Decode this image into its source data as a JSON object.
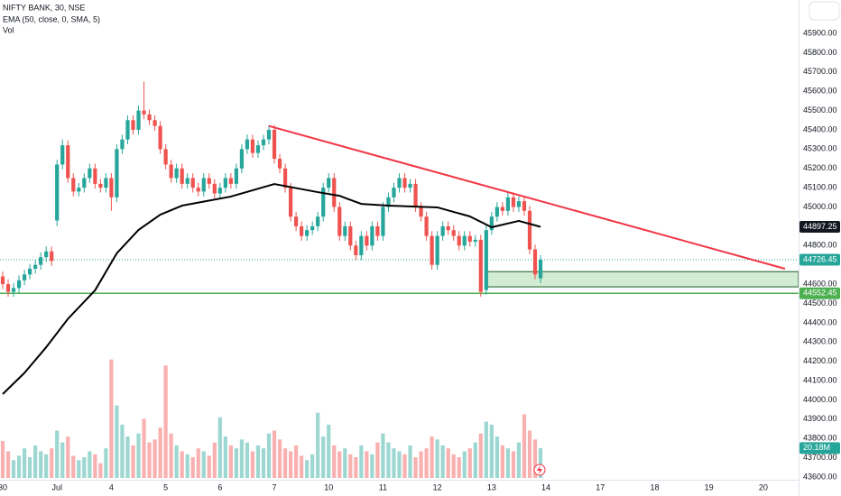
{
  "chart_data": {
    "type": "candlestick",
    "title": "NIFTY BANK, 30, NSE",
    "indicators": [
      "EMA (50, close, 0, SMA, 5)",
      "Vol"
    ],
    "colors": {
      "up": "#26a69a",
      "down": "#ef5350",
      "ema": "#000000",
      "trend": "#f23645",
      "support": "#4caf50"
    },
    "grid": false,
    "xlim": [
      -0.5,
      146.5
    ],
    "ylim": [
      43586,
      46073
    ],
    "xticks": [
      {
        "value": 0,
        "label": "30"
      },
      {
        "value": 10,
        "label": "Jul"
      },
      {
        "value": 20,
        "label": "4"
      },
      {
        "value": 30,
        "label": "5"
      },
      {
        "value": 40,
        "label": "6"
      },
      {
        "value": 50,
        "label": "7"
      },
      {
        "value": 60,
        "label": "10"
      },
      {
        "value": 70,
        "label": "11"
      },
      {
        "value": 80,
        "label": "12"
      },
      {
        "value": 90,
        "label": "13"
      },
      {
        "value": 100,
        "label": "14"
      },
      {
        "value": 110,
        "label": "17"
      },
      {
        "value": 120,
        "label": "18"
      },
      {
        "value": 130,
        "label": "19"
      },
      {
        "value": 140,
        "label": "20"
      }
    ],
    "yticks": [
      {
        "value": 43600,
        "label": "43600.00"
      },
      {
        "value": 43700,
        "label": "43700.00"
      },
      {
        "value": 43800,
        "label": "43800.00"
      },
      {
        "value": 43900,
        "label": "43900.00"
      },
      {
        "value": 44000,
        "label": "44000.00"
      },
      {
        "value": 44100,
        "label": "44100.00"
      },
      {
        "value": 44200,
        "label": "44200.00"
      },
      {
        "value": 44300,
        "label": "44300.00"
      },
      {
        "value": 44400,
        "label": "44400.00"
      },
      {
        "value": 44500,
        "label": "44500.00"
      },
      {
        "value": 44600,
        "label": "44600.00"
      },
      {
        "value": 44800,
        "label": "44800.00"
      },
      {
        "value": 45000,
        "label": "45000.00"
      },
      {
        "value": 45100,
        "label": "45100.00"
      },
      {
        "value": 45200,
        "label": "45200.00"
      },
      {
        "value": 45300,
        "label": "45300.00"
      },
      {
        "value": 45400,
        "label": "45400.00"
      },
      {
        "value": 45500,
        "label": "45500.00"
      },
      {
        "value": 45600,
        "label": "45600.00"
      },
      {
        "value": 45700,
        "label": "45700.00"
      },
      {
        "value": 45800,
        "label": "45800.00"
      },
      {
        "value": 45900,
        "label": "45900.00"
      }
    ],
    "open": [
      44640,
      44600,
      44560,
      44580,
      44620,
      44650,
      44680,
      44700,
      44740,
      44770,
      44930,
      45220,
      45320,
      45150,
      45080,
      45100,
      45150,
      45200,
      45120,
      45100,
      45150,
      45050,
      45300,
      45350,
      45450,
      45400,
      45500,
      45480,
      45450,
      45420,
      45300,
      45220,
      45150,
      45200,
      45120,
      45150,
      45100,
      45080,
      45150,
      45120,
      45070,
      45100,
      45150,
      45120,
      45200,
      45300,
      45350,
      45280,
      45320,
      45350,
      45400,
      45250,
      45200,
      45100,
      44950,
      44900,
      44850,
      44880,
      44900,
      44950,
      45100,
      45150,
      45000,
      44850,
      44900,
      44800,
      44750,
      44850,
      44800,
      44900,
      44850,
      45000,
      45050,
      45100,
      45150,
      45100,
      45120,
      45000,
      44950,
      44850,
      44700,
      44850,
      44900,
      44880,
      44850,
      44800,
      44850,
      44820,
      44830,
      44570,
      44880,
      44950,
      45000,
      44980,
      45050,
      45000,
      45030,
      44980,
      44780,
      44630
    ],
    "high": [
      44665,
      44625,
      44605,
      44645,
      44675,
      44705,
      44725,
      44765,
      44795,
      44795,
      45245,
      45350,
      45345,
      45175,
      45125,
      45175,
      45225,
      45225,
      45145,
      45175,
      45175,
      45325,
      45375,
      45475,
      45475,
      45525,
      45650,
      45505,
      45475,
      45445,
      45325,
      45245,
      45225,
      45225,
      45175,
      45175,
      45125,
      45175,
      45175,
      45145,
      45125,
      45175,
      45175,
      45225,
      45325,
      45375,
      45375,
      45345,
      45375,
      45425,
      45425,
      45275,
      45225,
      45125,
      44975,
      44925,
      44905,
      44925,
      44975,
      45125,
      45175,
      45175,
      45025,
      44925,
      44925,
      44825,
      44875,
      44875,
      44925,
      44925,
      45025,
      45075,
      45125,
      45175,
      45175,
      45145,
      45145,
      45025,
      44975,
      44875,
      44875,
      44925,
      44925,
      44905,
      44875,
      44875,
      44875,
      44855,
      44855,
      44905,
      44975,
      45025,
      45025,
      45075,
      45075,
      45055,
      45055,
      45005,
      44805,
      44750
    ],
    "low": [
      44575,
      44535,
      44535,
      44555,
      44595,
      44625,
      44655,
      44675,
      44715,
      44695,
      44900,
      45195,
      45125,
      45055,
      45055,
      45075,
      45125,
      45095,
      45075,
      45075,
      44980,
      45025,
      45275,
      45325,
      45375,
      45375,
      45455,
      45425,
      45395,
      45275,
      45195,
      45125,
      45125,
      45095,
      45095,
      45075,
      45055,
      45055,
      45095,
      45045,
      45045,
      45075,
      45095,
      45095,
      45175,
      45275,
      45255,
      45255,
      45295,
      45325,
      45225,
      45175,
      45075,
      44925,
      44875,
      44825,
      44825,
      44855,
      44875,
      44925,
      45075,
      44975,
      44825,
      44825,
      44775,
      44725,
      44725,
      44775,
      44775,
      44825,
      44825,
      44975,
      45025,
      45075,
      45075,
      45075,
      44975,
      44925,
      44825,
      44675,
      44675,
      44825,
      44855,
      44825,
      44775,
      44775,
      44795,
      44795,
      44535,
      44545,
      44855,
      44925,
      44955,
      44955,
      44975,
      44975,
      44955,
      44755,
      44625,
      44605
    ],
    "close": [
      44600,
      44560,
      44580,
      44620,
      44650,
      44680,
      44700,
      44740,
      44770,
      44720,
      45220,
      45320,
      45150,
      45080,
      45100,
      45150,
      45200,
      45120,
      45100,
      45150,
      45050,
      45300,
      45350,
      45450,
      45400,
      45500,
      45480,
      45450,
      45420,
      45300,
      45220,
      45150,
      45200,
      45120,
      45150,
      45100,
      45080,
      45150,
      45120,
      45070,
      45100,
      45150,
      45120,
      45200,
      45300,
      45350,
      45280,
      45320,
      45350,
      45400,
      45250,
      45200,
      45100,
      44950,
      44900,
      44850,
      44880,
      44900,
      44950,
      45100,
      45150,
      45000,
      44850,
      44900,
      44800,
      44750,
      44850,
      44800,
      44900,
      44850,
      45000,
      45050,
      45100,
      45150,
      45100,
      45120,
      45000,
      44950,
      44850,
      44700,
      44850,
      44900,
      44880,
      44850,
      44800,
      44850,
      44820,
      44830,
      44560,
      44880,
      44950,
      45000,
      44980,
      45050,
      45000,
      45030,
      44980,
      44780,
      44650,
      44726.45
    ],
    "volume": {
      "vlim": [
        0,
        81
      ],
      "last_label": "20.18M",
      "values": [
        25,
        18,
        12,
        15,
        20,
        14,
        22,
        18,
        16,
        20,
        32,
        24,
        28,
        15,
        12,
        14,
        18,
        16,
        10,
        20,
        80,
        49,
        36,
        28,
        22,
        30,
        40,
        24,
        26,
        34,
        76,
        30,
        22,
        18,
        16,
        14,
        20,
        18,
        15,
        24,
        41,
        28,
        22,
        20,
        26,
        24,
        18,
        22,
        20,
        30,
        32,
        26,
        20,
        18,
        22,
        15,
        12,
        16,
        44,
        28,
        36,
        22,
        18,
        20,
        16,
        14,
        22,
        18,
        16,
        24,
        30,
        24,
        20,
        18,
        16,
        22,
        14,
        18,
        20,
        28,
        26,
        22,
        20,
        16,
        14,
        18,
        20,
        24,
        30,
        38,
        36,
        28,
        22,
        20,
        18,
        24,
        43,
        32,
        26,
        20.18
      ]
    },
    "ema": {
      "x": [
        0,
        4,
        8,
        12,
        17,
        21,
        25,
        29,
        33,
        42,
        50,
        58,
        62,
        66,
        71,
        80,
        86,
        90,
        95,
        99
      ],
      "values": [
        44030,
        44140,
        44273,
        44420,
        44568,
        44760,
        44881,
        44960,
        45007,
        45054,
        45119,
        45077,
        45058,
        45016,
        45007,
        44998,
        44951,
        44895,
        44928,
        44897.25
      ]
    },
    "trendline": {
      "x": [
        49,
        144
      ],
      "values": [
        45420,
        44680
      ]
    },
    "zone": {
      "x": [
        89,
        146.5
      ],
      "values": [
        44586,
        44665
      ]
    },
    "support": 44552.45
  }
}
